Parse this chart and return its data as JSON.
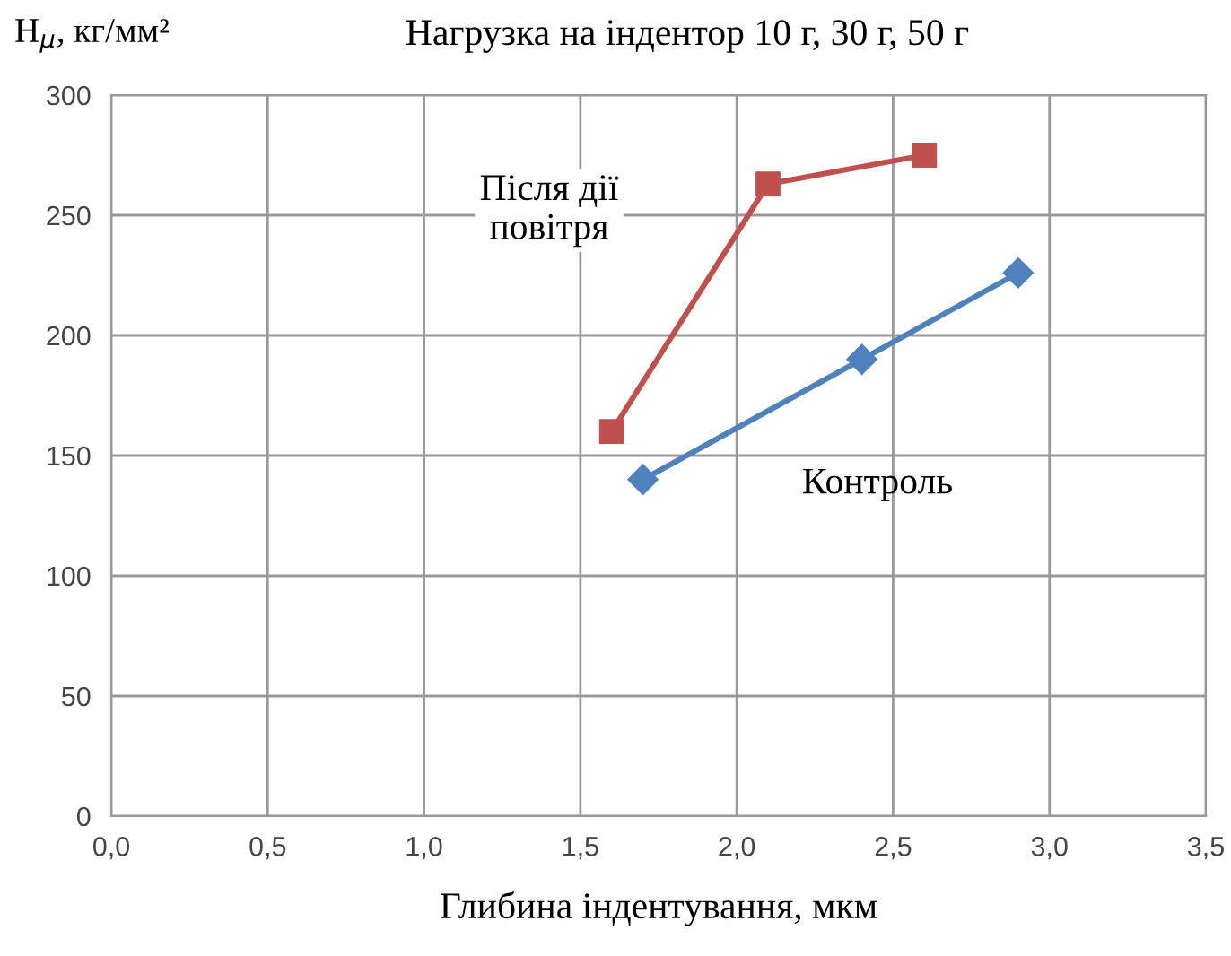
{
  "chart_data": {
    "type": "line",
    "title": "Нагрузка на індентор 10 г, 30 г, 50 г",
    "xlabel": "Глибина індентування, мкм",
    "ylabel": "H$_{μ}$, кг/мм²",
    "series": [
      {
        "name": "Після дії\nповітря",
        "color": "#c0504d",
        "marker": "square",
        "x": [
          1.6,
          2.1,
          2.6
        ],
        "values": [
          160,
          263,
          275
        ]
      },
      {
        "name": "Контроль",
        "color": "#4f81bd",
        "marker": "diamond",
        "x": [
          1.7,
          2.4,
          2.9
        ],
        "values": [
          140,
          190,
          226
        ]
      }
    ],
    "xlim": [
      0,
      3.5
    ],
    "xticks": [
      {
        "value": 0,
        "label": "0,0"
      },
      {
        "value": 0.5,
        "label": "0,5"
      },
      {
        "value": 1,
        "label": "1,0"
      },
      {
        "value": 1.5,
        "label": "1,5"
      },
      {
        "value": 2,
        "label": "2,0"
      },
      {
        "value": 2.5,
        "label": "2,5"
      },
      {
        "value": 3,
        "label": "3,0"
      },
      {
        "value": 3.5,
        "label": "3,5"
      }
    ],
    "ylim": [
      0,
      300
    ],
    "yticks": [
      0,
      50,
      100,
      150,
      200,
      250,
      300
    ],
    "grid": true,
    "legend": false
  }
}
